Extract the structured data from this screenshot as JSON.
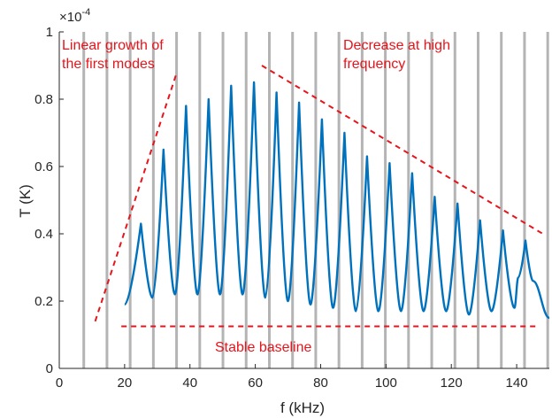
{
  "chart_data": {
    "type": "line",
    "xlabel": "f (kHz)",
    "ylabel": "T (K)",
    "xlim": [
      0,
      150
    ],
    "ylim": [
      0,
      1.0
    ],
    "y_exponent_label": "×10",
    "y_exponent_power": "-4",
    "x_ticks": [
      "0",
      "20",
      "40",
      "60",
      "80",
      "100",
      "120",
      "140"
    ],
    "y_ticks": [
      "0",
      "0.2",
      "0.4",
      "0.6",
      "0.8",
      "1"
    ],
    "colors": {
      "signal": "#0072bd",
      "annotation": "#e8141b",
      "mode_lines": "#b4b4b4"
    },
    "mode_lines_x": [
      7.5,
      14.6,
      21.7,
      28.8,
      35.9,
      43.0,
      50.1,
      57.2,
      64.3,
      71.4,
      78.5,
      85.6,
      92.7,
      99.8,
      106.9,
      114.0,
      121.1,
      128.2,
      135.3,
      142.4,
      149.5
    ],
    "series": [
      {
        "peaks": [
          {
            "x": 25.0,
            "y": 0.43
          },
          {
            "x": 31.9,
            "y": 0.65
          },
          {
            "x": 38.8,
            "y": 0.78
          },
          {
            "x": 45.7,
            "y": 0.8
          },
          {
            "x": 52.6,
            "y": 0.84
          },
          {
            "x": 59.6,
            "y": 0.85
          },
          {
            "x": 66.5,
            "y": 0.82
          },
          {
            "x": 73.4,
            "y": 0.79
          },
          {
            "x": 80.4,
            "y": 0.74
          },
          {
            "x": 87.3,
            "y": 0.7
          },
          {
            "x": 94.2,
            "y": 0.63
          },
          {
            "x": 101.1,
            "y": 0.61
          },
          {
            "x": 108.0,
            "y": 0.58
          },
          {
            "x": 114.9,
            "y": 0.51
          },
          {
            "x": 121.9,
            "y": 0.49
          },
          {
            "x": 128.8,
            "y": 0.44
          },
          {
            "x": 135.8,
            "y": 0.41
          },
          {
            "x": 142.7,
            "y": 0.38
          }
        ],
        "valleys": [
          {
            "x": 20.0,
            "y": 0.19
          },
          {
            "x": 28.5,
            "y": 0.21
          },
          {
            "x": 35.4,
            "y": 0.22
          },
          {
            "x": 42.3,
            "y": 0.22
          },
          {
            "x": 49.2,
            "y": 0.22
          },
          {
            "x": 56.1,
            "y": 0.22
          },
          {
            "x": 63.1,
            "y": 0.21
          },
          {
            "x": 70.0,
            "y": 0.2
          },
          {
            "x": 76.9,
            "y": 0.19
          },
          {
            "x": 83.8,
            "y": 0.18
          },
          {
            "x": 90.8,
            "y": 0.17
          },
          {
            "x": 97.7,
            "y": 0.17
          },
          {
            "x": 104.6,
            "y": 0.17
          },
          {
            "x": 111.5,
            "y": 0.17
          },
          {
            "x": 118.4,
            "y": 0.17
          },
          {
            "x": 125.4,
            "y": 0.16
          },
          {
            "x": 132.3,
            "y": 0.17
          },
          {
            "x": 139.3,
            "y": 0.18
          },
          {
            "x": 150.0,
            "y": 0.15
          }
        ],
        "shoulders": [
          {
            "x": 140.5,
            "y": 0.27
          },
          {
            "x": 145.0,
            "y": 0.26
          }
        ]
      }
    ],
    "annotations": [
      {
        "id": "growth",
        "text_lines": [
          "Linear growth of",
          "the first modes"
        ],
        "line": [
          [
            11,
            0.14
          ],
          [
            36,
            0.88
          ]
        ]
      },
      {
        "id": "decrease",
        "text_lines": [
          "Decrease at high",
          "frequency"
        ],
        "line": [
          [
            62,
            0.9
          ],
          [
            148,
            0.4
          ]
        ]
      },
      {
        "id": "baseline",
        "text_lines": [
          "Stable baseline"
        ],
        "line": [
          [
            19,
            0.125
          ],
          [
            146,
            0.125
          ]
        ]
      }
    ]
  }
}
